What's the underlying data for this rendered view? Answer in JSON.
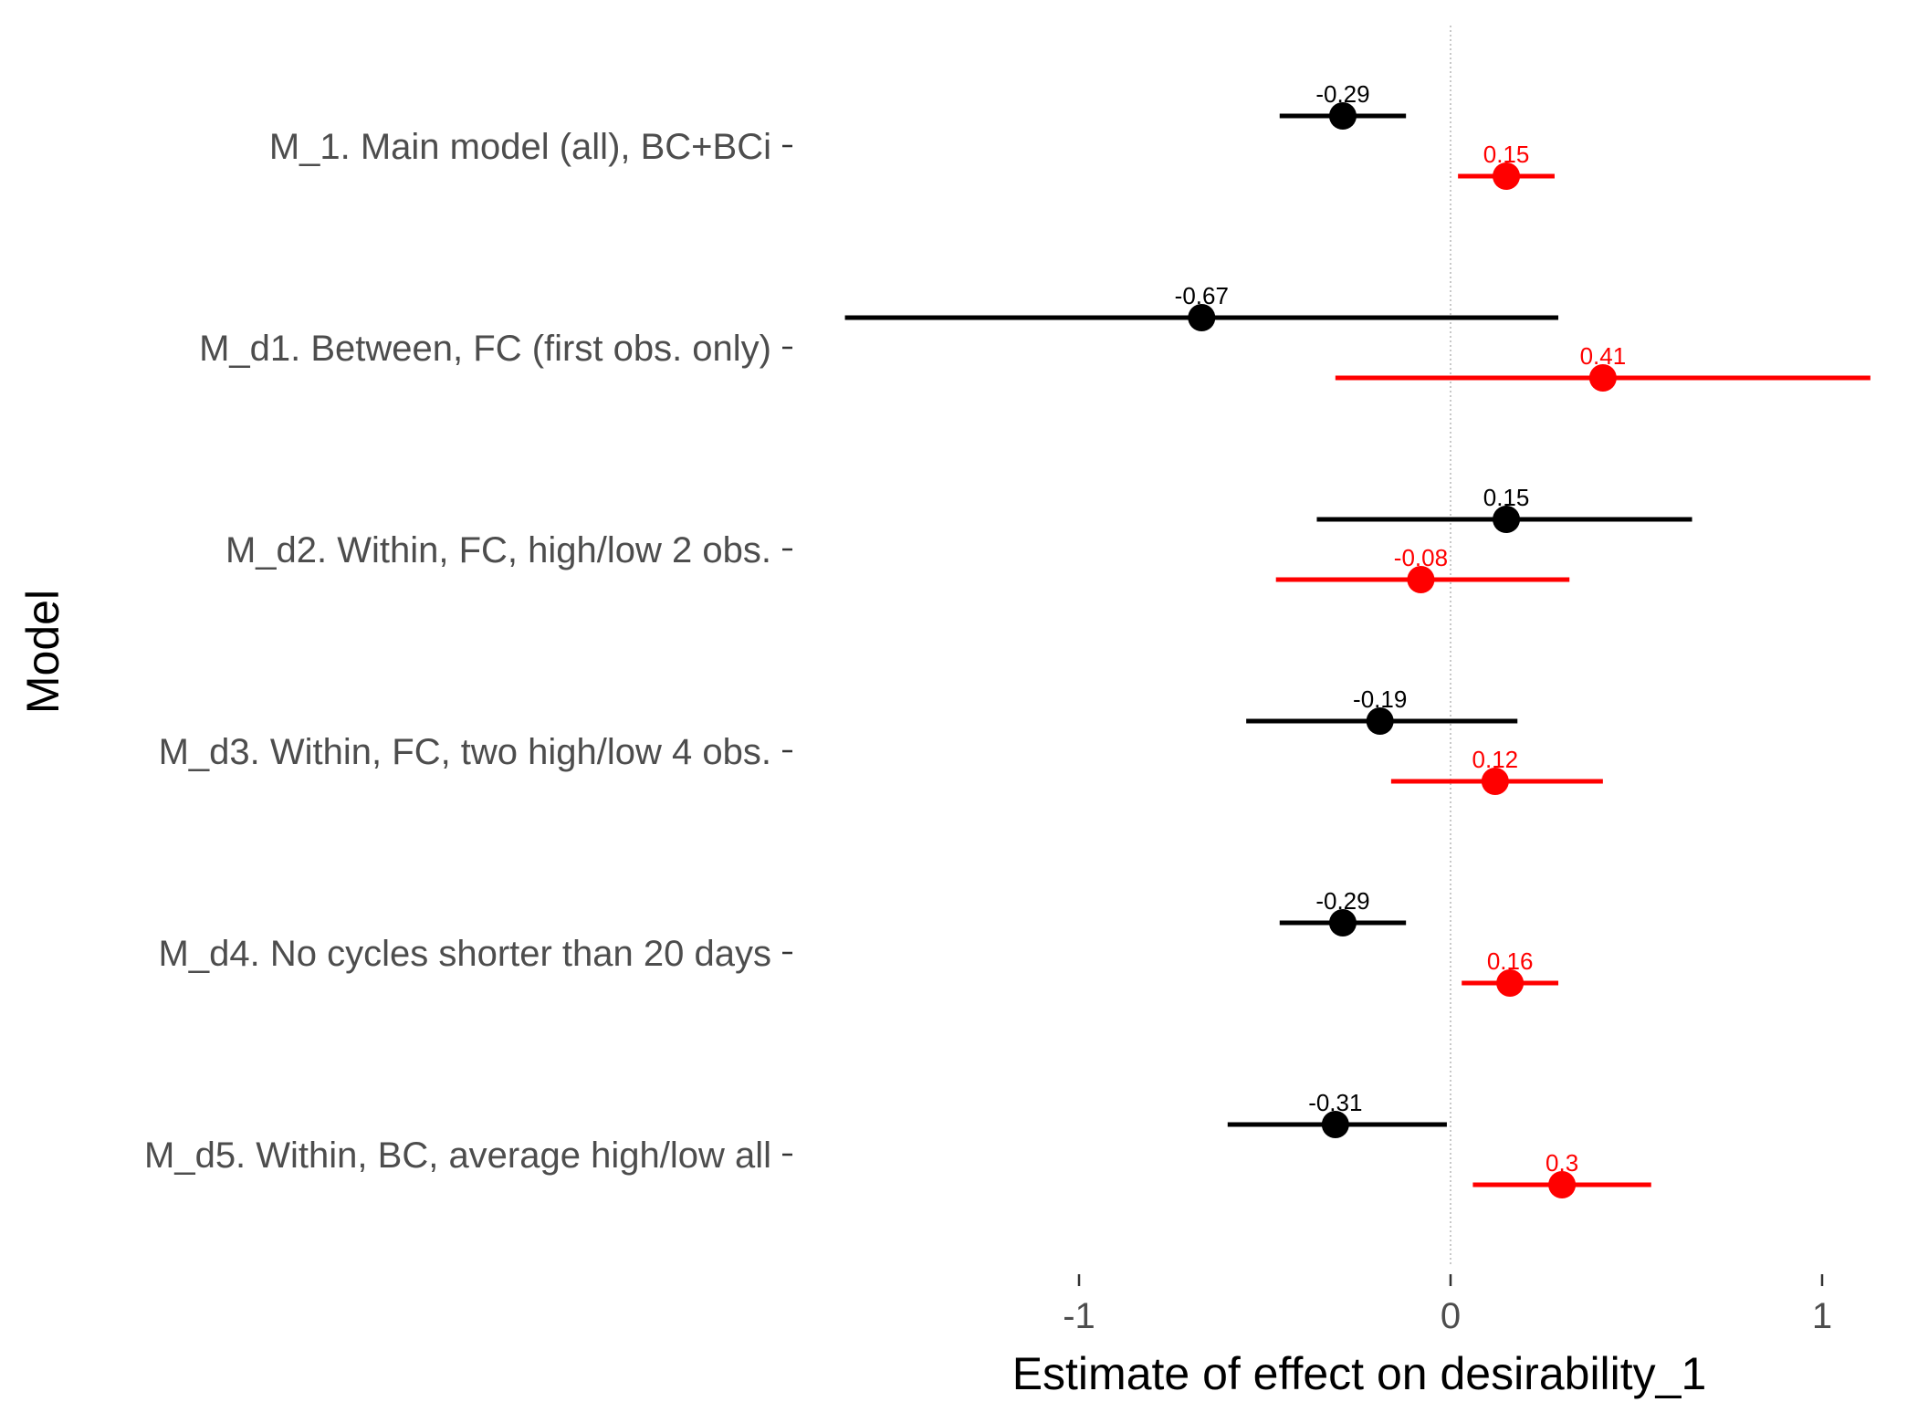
{
  "chart_data": {
    "type": "forest",
    "xlabel": "Estimate of effect on desirability_1",
    "ylabel": "Model",
    "xlim": [
      -1.65,
      1.15
    ],
    "xticks": [
      -1,
      0,
      1
    ],
    "xtick_labels": [
      "-1",
      "0",
      "1"
    ],
    "reference_line": 0,
    "categories": [
      "M_1. Main model (all), BC+BCi",
      "M_d1. Between, FC (first obs. only)",
      "M_d2. Within, FC, high/low 2 obs.",
      "M_d3. Within, FC, two high/low 4 obs.",
      "M_d4. No cycles shorter than 20 days",
      "M_d5. Within, BC, average high/low all"
    ],
    "series": [
      {
        "color": "#000000",
        "estimates": [
          -0.29,
          -0.67,
          0.15,
          -0.19,
          -0.29,
          -0.31
        ],
        "labels": [
          "-0.29",
          "-0.67",
          "0.15",
          "-0.19",
          "-0.29",
          "-0.31"
        ],
        "lower": [
          -0.46,
          -1.63,
          -0.36,
          -0.55,
          -0.46,
          -0.6
        ],
        "upper": [
          -0.12,
          0.29,
          0.65,
          0.18,
          -0.12,
          -0.01
        ]
      },
      {
        "color": "#ff0000",
        "estimates": [
          0.15,
          0.41,
          -0.08,
          0.12,
          0.16,
          0.3
        ],
        "labels": [
          "0.15",
          "0.41",
          "-0.08",
          "0.12",
          "0.16",
          "0.3"
        ],
        "lower": [
          0.02,
          -0.31,
          -0.47,
          -0.16,
          0.03,
          0.06
        ],
        "upper": [
          0.28,
          1.13,
          0.32,
          0.41,
          0.29,
          0.54
        ]
      }
    ]
  }
}
